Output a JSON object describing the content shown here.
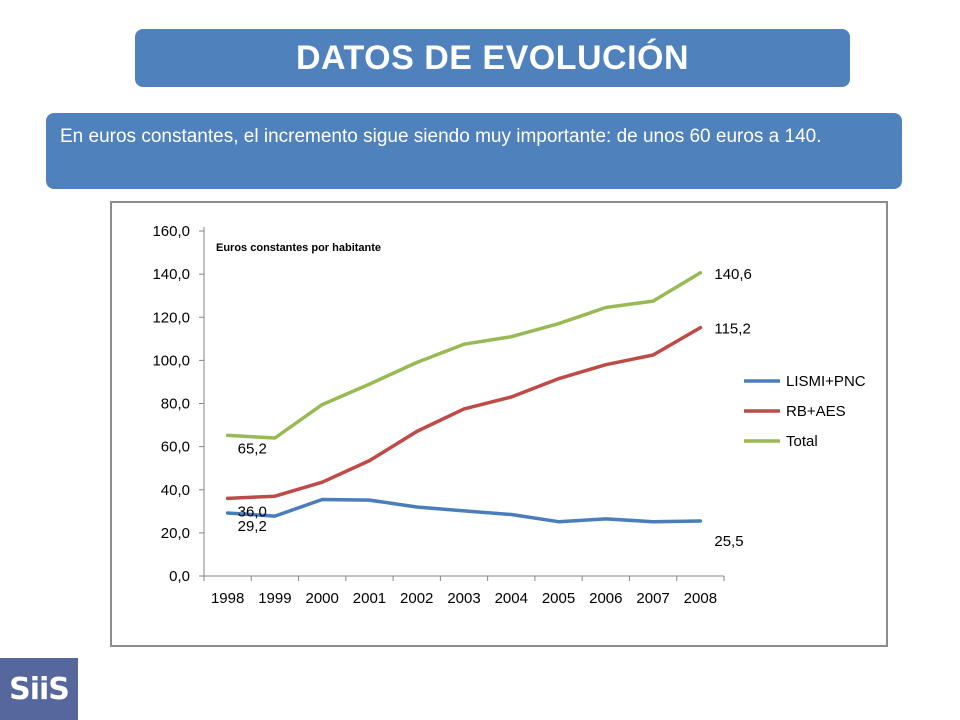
{
  "header": {
    "title": "DATOS DE EVOLUCIÓN",
    "subtitle": "En euros constantes, el incremento sigue siendo muy importante: de unos 60 euros a 140."
  },
  "logo": {
    "text": "SiiS"
  },
  "chart_data": {
    "type": "line",
    "title": "Euros constantes por habitante",
    "xlabel": "",
    "ylabel": "",
    "ylim": [
      0,
      160
    ],
    "yticks": [
      "0,0",
      "20,0",
      "40,0",
      "60,0",
      "80,0",
      "100,0",
      "120,0",
      "140,0",
      "160,0"
    ],
    "categories": [
      "1998",
      "1999",
      "2000",
      "2001",
      "2002",
      "2003",
      "2004",
      "2005",
      "2006",
      "2007",
      "2008"
    ],
    "grid": false,
    "legend_position": "right",
    "series": [
      {
        "name": "LISMI+PNC",
        "color": "#4a7ebb",
        "values": [
          29.2,
          27.8,
          35.5,
          35.2,
          32.0,
          30.2,
          28.5,
          25.2,
          26.5,
          25.2,
          25.5
        ]
      },
      {
        "name": "RB+AES",
        "color": "#be4b48",
        "values": [
          36.0,
          37.0,
          43.5,
          53.5,
          67.0,
          77.5,
          83.0,
          91.5,
          98.0,
          102.5,
          115.2
        ]
      },
      {
        "name": "Total",
        "color": "#98b954",
        "values": [
          65.2,
          64.0,
          79.5,
          89.0,
          99.0,
          107.5,
          111.0,
          117.0,
          124.5,
          127.5,
          140.6
        ]
      }
    ],
    "annotations": [
      {
        "series": 2,
        "index": 0,
        "text": "65,2"
      },
      {
        "series": 1,
        "index": 0,
        "text": "36,0"
      },
      {
        "series": 0,
        "index": 0,
        "text": "29,2"
      },
      {
        "series": 2,
        "index": 10,
        "text": "140,6"
      },
      {
        "series": 1,
        "index": 10,
        "text": "115,2"
      },
      {
        "series": 0,
        "index": 10,
        "text": "25,5"
      }
    ]
  }
}
